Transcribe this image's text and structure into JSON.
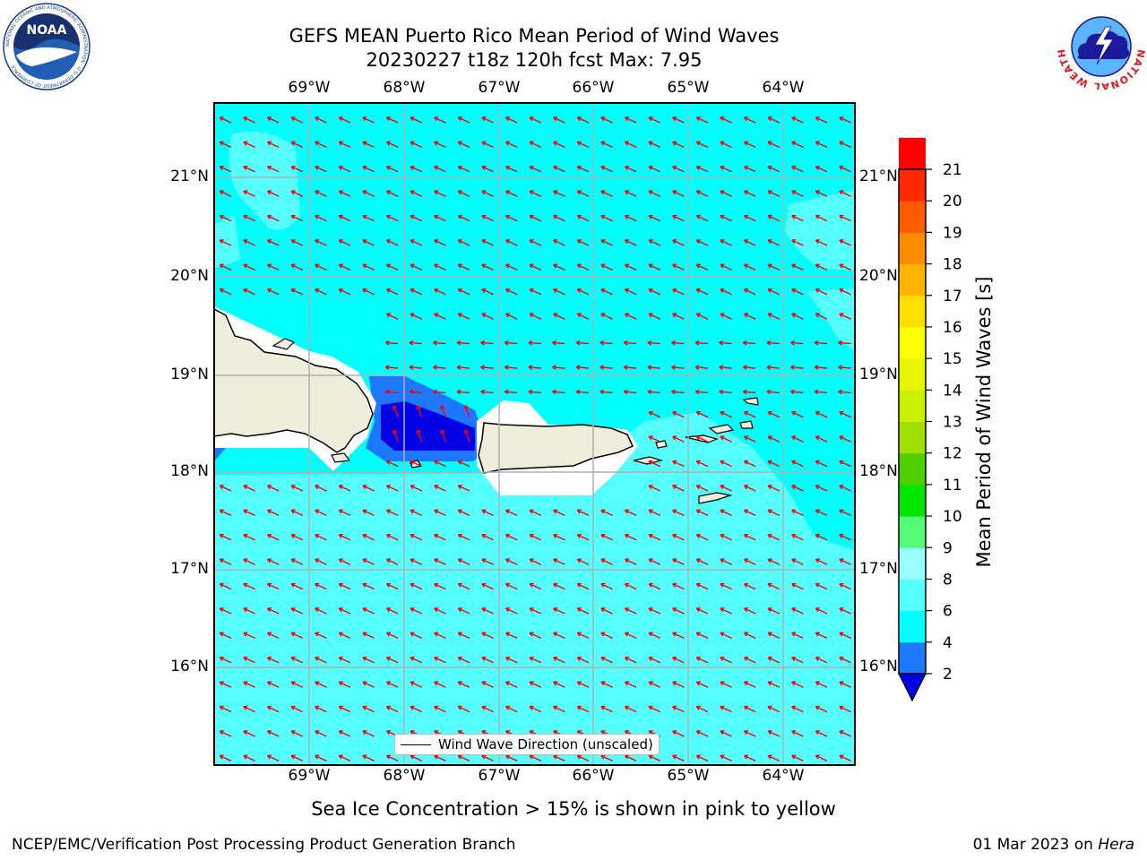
{
  "header": {
    "title_line1": "GEFS MEAN Puerto Rico Mean Period of Wind Waves",
    "title_line2": "20230227 t18z 120h fcst   Max: 7.95"
  },
  "logos": {
    "left": {
      "name": "noaa-logo",
      "text": "NOAA",
      "ring_text": "NATIONAL OCEANIC AND ATMOSPHERIC ADMINISTRATION · U.S. DEPARTMENT OF COMMERCE"
    },
    "right": {
      "name": "nws-logo",
      "ring_text": "NATIONAL WEATHER SERVICE"
    }
  },
  "map": {
    "lon_labels": [
      "69°W",
      "68°W",
      "67°W",
      "66°W",
      "65°W",
      "64°W"
    ],
    "lat_labels": [
      "21°N",
      "20°N",
      "19°N",
      "18°N",
      "17°N",
      "16°N"
    ],
    "legend_label": "Wind Wave Direction (unscaled)",
    "colors": {
      "ocean_main": "#00ffff",
      "ocean_light": "#55ffff",
      "land": "#efeedd",
      "short_period": "#1e78ff",
      "very_short": "#0000e6",
      "arrow": "#ff0000"
    }
  },
  "colorbar": {
    "label": "Mean Period of Wind Waves [s]",
    "ticks": [
      "2",
      "4",
      "6",
      "8",
      "9",
      "10",
      "11",
      "12",
      "13",
      "14",
      "15",
      "16",
      "17",
      "18",
      "19",
      "20",
      "21"
    ],
    "colors": [
      "#1e78ff",
      "#00ffff",
      "#55ffff",
      "#99ffff",
      "#55fa78",
      "#00e600",
      "#50d000",
      "#a0e000",
      "#c8f000",
      "#e6f500",
      "#ffff00",
      "#ffe100",
      "#ffb400",
      "#ff8c00",
      "#ff5a00",
      "#ff2800",
      "#ff0000"
    ],
    "under_color": "#0000e6"
  },
  "footer": {
    "note": "Sea Ice Concentration > 15% is shown in pink to yellow",
    "left": "NCEP/EMC/Verification Post Processing Product Generation Branch",
    "right_date": "01 Mar 2023 on ",
    "right_host": "Hera"
  }
}
